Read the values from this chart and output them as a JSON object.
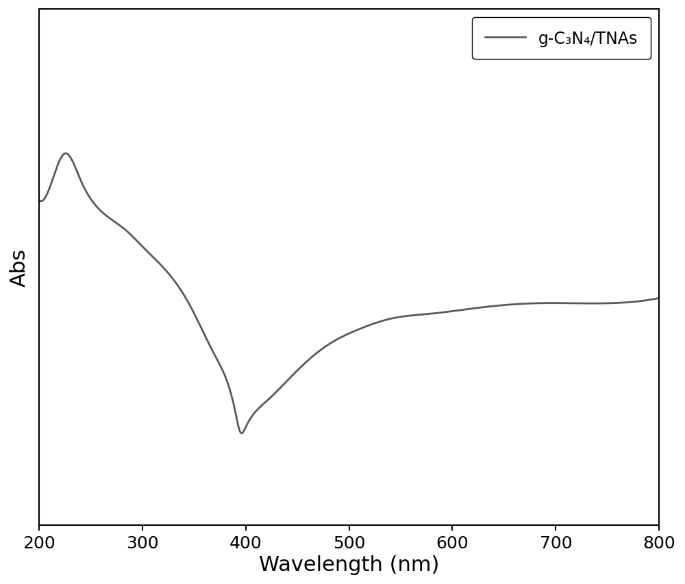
{
  "xlabel": "Wavelength (nm)",
  "ylabel": "Abs",
  "xlim": [
    200,
    800
  ],
  "ylim": [
    0.0,
    1.0
  ],
  "xticks": [
    200,
    300,
    400,
    500,
    600,
    700,
    800
  ],
  "line_color": "#595959",
  "line_width": 2.0,
  "legend_label": "g-C₃N₄/TNAs",
  "legend_loc": "upper right",
  "xlabel_fontsize": 22,
  "ylabel_fontsize": 22,
  "tick_fontsize": 18,
  "legend_fontsize": 17,
  "background_color": "#ffffff",
  "figure_width": 10.0,
  "figure_height": 8.54,
  "spine_linewidth": 1.5
}
